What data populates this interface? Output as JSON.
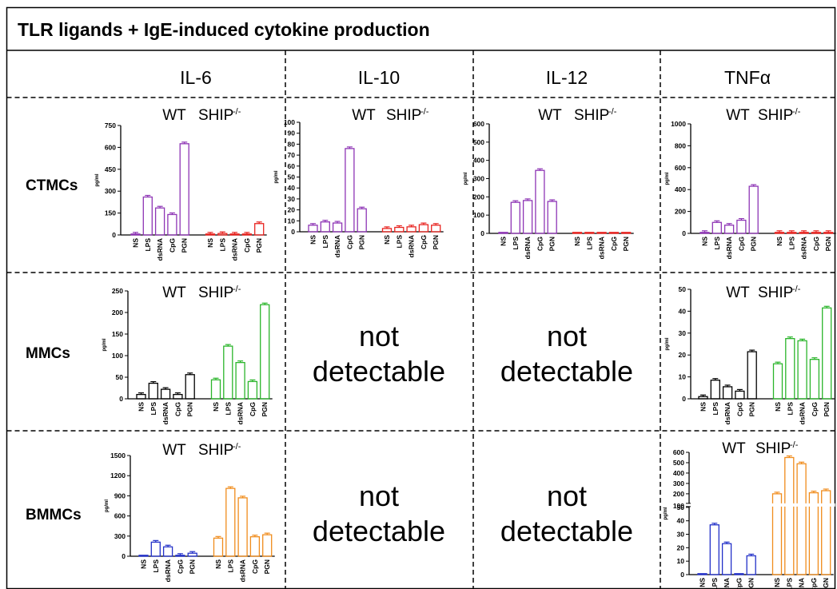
{
  "header": {
    "title": "TLR ligands + IgE-induced cytokine production"
  },
  "columns": [
    "IL-6",
    "IL-10",
    "IL-12",
    "TNFα"
  ],
  "rows": [
    "CTMCs",
    "MMCs",
    "BMMCs"
  ],
  "labels": {
    "wt": "WT",
    "ship_base": "SHIP",
    "ship_sup": "-/-",
    "ylabel": "pg/ml",
    "not_detectable_1": "not",
    "not_detectable_2": "detectable"
  },
  "colors": {
    "wt_default": "#000000",
    "ctmc": "#8e35b5",
    "ctmc_ship": "#e8231f",
    "mmc_ship": "#2bb52b",
    "bmmc_wt": "#2230c8",
    "bmmc_ship": "#f08c1c"
  },
  "chart_data": [
    {
      "id": "ctmc-il6",
      "type": "bar",
      "categories": [
        "NS",
        "LPS",
        "dsRNA",
        "CpG",
        "PGN",
        "NS",
        "LPS",
        "dsRNA",
        "CpG",
        "PGN"
      ],
      "values": [
        5,
        260,
        185,
        140,
        625,
        5,
        10,
        6,
        4,
        78
      ],
      "ylabel": "pg/ml",
      "ylim": [
        0,
        750
      ],
      "yticks": [
        0,
        150,
        300,
        450,
        600,
        750
      ],
      "colors": [
        "#8e35b5",
        "#e8231f"
      ]
    },
    {
      "id": "ctmc-il10",
      "type": "bar",
      "categories": [
        "NS",
        "LPS",
        "dsRNA",
        "CpG",
        "PGN",
        "NS",
        "LPS",
        "dsRNA",
        "CpG",
        "PGN"
      ],
      "values": [
        6,
        9,
        8,
        76,
        21,
        3,
        4,
        4.5,
        6.5,
        6
      ],
      "ylabel": "pg/ml",
      "ylim": [
        0,
        100
      ],
      "yticks": [
        0,
        10,
        20,
        30,
        40,
        50,
        60,
        70,
        80,
        90,
        100
      ],
      "colors": [
        "#8e35b5",
        "#e8231f"
      ]
    },
    {
      "id": "ctmc-il12",
      "type": "bar",
      "categories": [
        "NS",
        "LPS",
        "dsRNA",
        "CpG",
        "PGN",
        "NS",
        "LPS",
        "dsRNA",
        "CpG",
        "PGN"
      ],
      "values": [
        0,
        170,
        180,
        345,
        175,
        0,
        0,
        0,
        0,
        0
      ],
      "ylabel": "pg/ml",
      "ylim": [
        0,
        600
      ],
      "yticks": [
        0,
        100,
        200,
        300,
        400,
        500,
        600
      ],
      "colors": [
        "#8e35b5",
        "#e8231f"
      ]
    },
    {
      "id": "ctmc-tnfa",
      "type": "bar",
      "categories": [
        "NS",
        "LPS",
        "dsRNA",
        "CpG",
        "PGN",
        "NS",
        "LPS",
        "dsRNA",
        "CpG",
        "PGN"
      ],
      "values": [
        2,
        100,
        75,
        120,
        430,
        2,
        2,
        3,
        4,
        5
      ],
      "ylabel": "pg/ml",
      "ylim": [
        0,
        1000
      ],
      "yticks": [
        0,
        200,
        400,
        600,
        800,
        1000
      ],
      "colors": [
        "#8e35b5",
        "#e8231f"
      ]
    },
    {
      "id": "mmc-il6",
      "type": "bar",
      "categories": [
        "NS",
        "LPS",
        "dsRNA",
        "CpG",
        "PGN",
        "NS",
        "LPS",
        "dsRNA",
        "CpG",
        "PGN"
      ],
      "values": [
        10,
        36,
        22,
        10,
        56,
        44,
        122,
        84,
        40,
        218
      ],
      "ylabel": "pg/ml",
      "ylim": [
        0,
        250
      ],
      "yticks": [
        0,
        50,
        100,
        150,
        200,
        250
      ],
      "colors": [
        "#000000",
        "#2bb52b"
      ]
    },
    {
      "id": "mmc-tnfa",
      "type": "bar",
      "categories": [
        "NS",
        "LPS",
        "dsRNA",
        "CpG",
        "PGN",
        "NS",
        "LPS",
        "dsRNA",
        "CpG",
        "PGN"
      ],
      "values": [
        1,
        8.5,
        5.5,
        3.5,
        21.5,
        16,
        27.5,
        26.5,
        18,
        41.5
      ],
      "ylabel": "pg/ml",
      "ylim": [
        0,
        50
      ],
      "yticks": [
        0,
        10,
        20,
        30,
        40,
        50
      ],
      "colors": [
        "#000000",
        "#2bb52b"
      ]
    },
    {
      "id": "bmmc-il6",
      "type": "bar",
      "categories": [
        "NS",
        "LPS",
        "dsRNA",
        "CpG",
        "PGN",
        "NS",
        "LPS",
        "dsRNA",
        "CpG",
        "PGN"
      ],
      "values": [
        0,
        210,
        140,
        10,
        45,
        270,
        1010,
        870,
        290,
        320
      ],
      "ylabel": "pg/ml",
      "ylim": [
        0,
        1500
      ],
      "yticks": [
        0,
        300,
        600,
        900,
        1200,
        1500
      ],
      "colors": [
        "#2230c8",
        "#f08c1c"
      ]
    },
    {
      "id": "bmmc-tnfa",
      "type": "bar",
      "categories": [
        "NS",
        "LPS",
        "dsRNA",
        "CpG",
        "PGN",
        "NS",
        "LPS",
        "dsRNA",
        "CpG",
        "PGN"
      ],
      "values": [
        0,
        37,
        23,
        0,
        14,
        200,
        550,
        490,
        210,
        230
      ],
      "ylabel": "pg/ml",
      "ylim": [
        0,
        600
      ],
      "yticks_lower": [
        0,
        10,
        20,
        30,
        40,
        50
      ],
      "yticks_upper": [
        100,
        200,
        300,
        400,
        500,
        600
      ],
      "axis_break": [
        50,
        100
      ],
      "colors": [
        "#2230c8",
        "#f08c1c"
      ]
    }
  ]
}
